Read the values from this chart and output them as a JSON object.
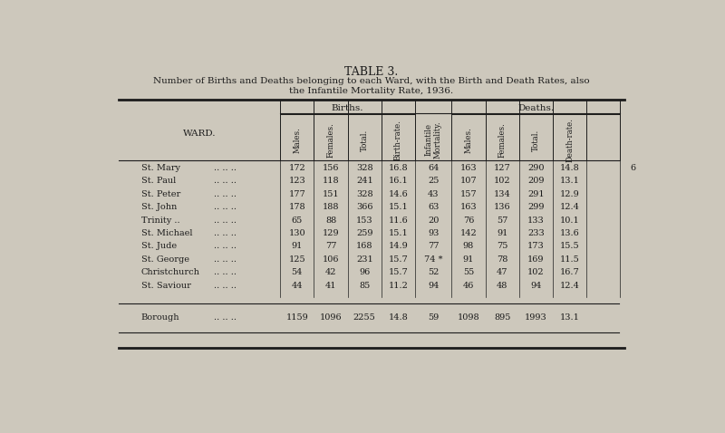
{
  "title": "TABLE 3.",
  "subtitle1": "Number of Births and Deaths belonging to each Ward, with the Birth and Death Rates, also",
  "subtitle2": "the Infantile Mortality Rate, 1936.",
  "group_header_births": "Births.",
  "group_header_deaths": "Deaths.",
  "ward_header": "WARD.",
  "col_headers": [
    "Males.",
    "Females.",
    "Total.",
    "Birth-rate.",
    "Infantile\nMortality.",
    "Males.",
    "Females.",
    "Total.",
    "Death-rate."
  ],
  "rows": [
    {
      "ward": "St. Mary",
      "dots": ".. .. ..",
      "b_males": "172",
      "b_females": "156",
      "b_total": "328",
      "birth_rate": "16.8",
      "inf_mort": "64",
      "d_males": "163",
      "d_females": "127",
      "d_total": "290",
      "death_rate": "14.8",
      "note": "6"
    },
    {
      "ward": "St. Paul",
      "dots": ".. .. ..",
      "b_males": "123",
      "b_females": "118",
      "b_total": "241",
      "birth_rate": "16.1",
      "inf_mort": "25",
      "d_males": "107",
      "d_females": "102",
      "d_total": "209",
      "death_rate": "13.1",
      "note": ""
    },
    {
      "ward": "St. Peter",
      "dots": ".. .. ..",
      "b_males": "177",
      "b_females": "151",
      "b_total": "328",
      "birth_rate": "14.6",
      "inf_mort": "43",
      "d_males": "157",
      "d_females": "134",
      "d_total": "291",
      "death_rate": "12.9",
      "note": ""
    },
    {
      "ward": "St. John",
      "dots": ".. .. ..",
      "b_males": "178",
      "b_females": "188",
      "b_total": "366",
      "birth_rate": "15.1",
      "inf_mort": "63",
      "d_males": "163",
      "d_females": "136",
      "d_total": "299",
      "death_rate": "12.4",
      "note": ""
    },
    {
      "ward": "Trinity ..",
      "dots": ".. .. ..",
      "b_males": "65",
      "b_females": "88",
      "b_total": "153",
      "birth_rate": "11.6",
      "inf_mort": "20",
      "d_males": "76",
      "d_females": "57",
      "d_total": "133",
      "death_rate": "10.1",
      "note": ""
    },
    {
      "ward": "St. Michael",
      "dots": ".. .. ..",
      "b_males": "130",
      "b_females": "129",
      "b_total": "259",
      "birth_rate": "15.1",
      "inf_mort": "93",
      "d_males": "142",
      "d_females": "91",
      "d_total": "233",
      "death_rate": "13.6",
      "note": ""
    },
    {
      "ward": "St. Jude",
      "dots": ".. .. ..",
      "b_males": "91",
      "b_females": "77",
      "b_total": "168",
      "birth_rate": "14.9",
      "inf_mort": "77",
      "d_males": "98",
      "d_females": "75",
      "d_total": "173",
      "death_rate": "15.5",
      "note": ""
    },
    {
      "ward": "St. George",
      "dots": ".. .. ..",
      "b_males": "125",
      "b_females": "106",
      "b_total": "231",
      "birth_rate": "15.7",
      "inf_mort": "74 *",
      "d_males": "91",
      "d_females": "78",
      "d_total": "169",
      "death_rate": "11.5",
      "note": ""
    },
    {
      "ward": "Christchurch",
      "dots": ".. .. ..",
      "b_males": "54",
      "b_females": "42",
      "b_total": "96",
      "birth_rate": "15.7",
      "inf_mort": "52",
      "d_males": "55",
      "d_females": "47",
      "d_total": "102",
      "death_rate": "16.7",
      "note": ""
    },
    {
      "ward": "St. Saviour",
      "dots": ".. .. ..",
      "b_males": "44",
      "b_females": "41",
      "b_total": "85",
      "birth_rate": "11.2",
      "inf_mort": "94",
      "d_males": "46",
      "d_females": "48",
      "d_total": "94",
      "death_rate": "12.4",
      "note": ""
    }
  ],
  "borough": {
    "ward": "Borough",
    "dots": ".. .. ..",
    "b_males": "1159",
    "b_females": "1096",
    "b_total": "2255",
    "birth_rate": "14.8",
    "inf_mort": "59",
    "d_males": "1098",
    "d_females": "895",
    "d_total": "1993",
    "death_rate": "13.1"
  },
  "bg_color": "#cdc8bc",
  "paper_color": "#d8d3c6",
  "text_color": "#1c1c1c"
}
